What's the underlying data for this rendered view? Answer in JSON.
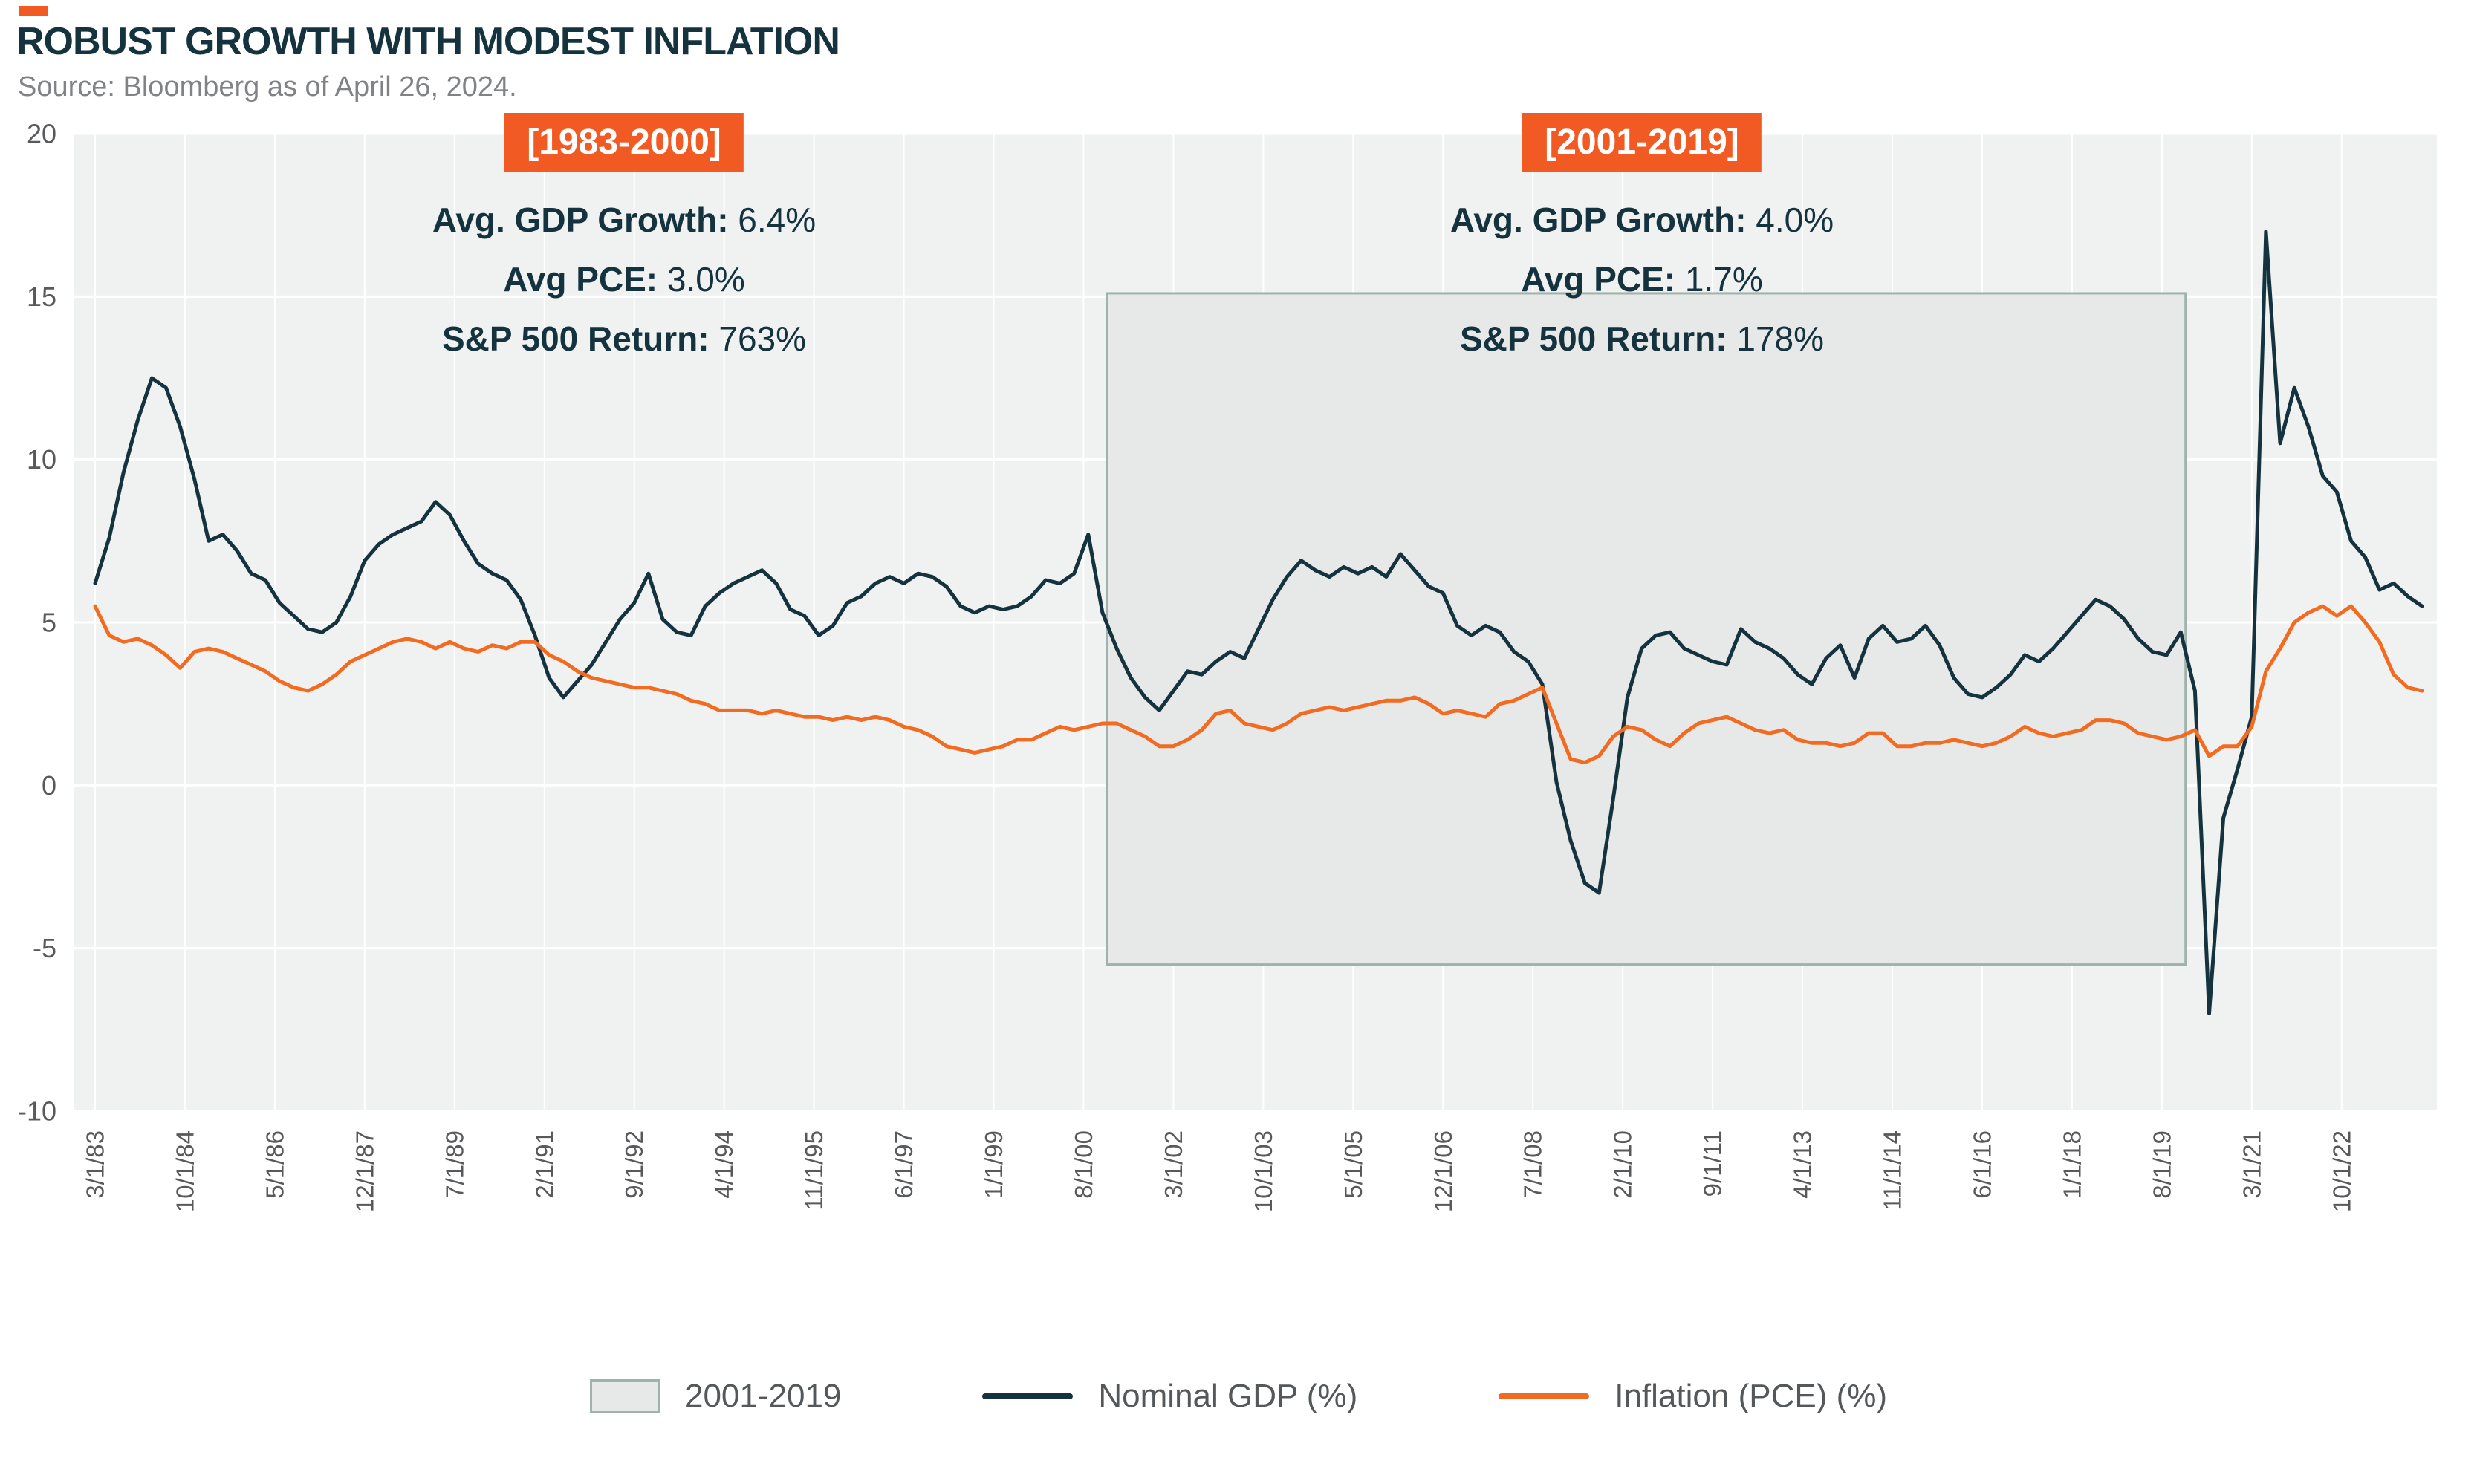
{
  "header": {
    "title": "ROBUST GROWTH WITH MODEST INFLATION",
    "source": "Source: Bloomberg as of April 26, 2024."
  },
  "colors": {
    "accent_orange": "#F15B23",
    "navy": "#15333F",
    "gdp_line": "#15333F",
    "pce_line": "#F26B21",
    "band_fill": "#E7E9E8",
    "band_border": "#9FB2AC",
    "plot_bg": "#EFF2F1",
    "grid": "#FFFFFF",
    "axis_text": "#58595B",
    "legend_text": "#54585A"
  },
  "annotations": [
    {
      "period": "[1983-2000]",
      "lines": [
        {
          "label": "Avg. GDP Growth:",
          "value": " 6.4%"
        },
        {
          "label": "Avg PCE:",
          "value": " 3.0%"
        },
        {
          "label": "S&P 500 Return:",
          "value": " 763%"
        }
      ]
    },
    {
      "period": "[2001-2019]",
      "lines": [
        {
          "label": "Avg. GDP Growth:",
          "value": " 4.0%"
        },
        {
          "label": "Avg PCE:",
          "value": " 1.7%"
        },
        {
          "label": "S&P 500 Return:",
          "value": " 178%"
        }
      ]
    }
  ],
  "legend": {
    "items": [
      {
        "type": "band",
        "label": "2001-2019"
      },
      {
        "type": "line",
        "label": "Nominal GDP (%)"
      },
      {
        "type": "line",
        "label": "Inflation (PCE) (%)"
      }
    ]
  },
  "chart_data": {
    "type": "line",
    "title": "Robust Growth with Modest Inflation",
    "x_start": "1983-03",
    "x_frequency": "quarterly",
    "x_tick_labels": [
      "3/1/83",
      "10/1/84",
      "5/1/86",
      "12/1/87",
      "7/1/89",
      "2/1/91",
      "9/1/92",
      "4/1/94",
      "11/1/95",
      "6/1/97",
      "1/1/99",
      "8/1/00",
      "3/1/02",
      "10/1/03",
      "5/1/05",
      "12/1/06",
      "7/1/08",
      "2/1/10",
      "9/1/11",
      "4/1/13",
      "11/1/14",
      "6/1/16",
      "1/1/18",
      "8/1/19",
      "3/1/21",
      "10/1/22"
    ],
    "ylim": [
      -10,
      20
    ],
    "y_ticks": [
      -10,
      -5,
      0,
      5,
      10,
      15,
      20
    ],
    "grid": true,
    "legend_position": "bottom",
    "highlight_band": {
      "label": "2001-2019",
      "x_from": "2001-01",
      "x_to": "2020-01",
      "y_from": -5.5,
      "y_to": 15.1
    },
    "series": [
      {
        "name": "Nominal GDP (%)",
        "color": "#15333F",
        "values": [
          6.2,
          7.6,
          9.6,
          11.2,
          12.5,
          12.2,
          11.0,
          9.4,
          7.5,
          7.7,
          7.2,
          6.5,
          6.3,
          5.6,
          5.2,
          4.8,
          4.7,
          5.0,
          5.8,
          6.9,
          7.4,
          7.7,
          7.9,
          8.1,
          8.7,
          8.3,
          7.5,
          6.8,
          6.5,
          6.3,
          5.7,
          4.6,
          3.3,
          2.7,
          3.2,
          3.7,
          4.4,
          5.1,
          5.6,
          6.5,
          5.1,
          4.7,
          4.6,
          5.5,
          5.9,
          6.2,
          6.4,
          6.6,
          6.2,
          5.4,
          5.2,
          4.6,
          4.9,
          5.6,
          5.8,
          6.2,
          6.4,
          6.2,
          6.5,
          6.4,
          6.1,
          5.5,
          5.3,
          5.5,
          5.4,
          5.5,
          5.8,
          6.3,
          6.2,
          6.5,
          7.7,
          5.3,
          4.2,
          3.3,
          2.7,
          2.3,
          2.9,
          3.5,
          3.4,
          3.8,
          4.1,
          3.9,
          4.8,
          5.7,
          6.4,
          6.9,
          6.6,
          6.4,
          6.7,
          6.5,
          6.7,
          6.4,
          7.1,
          6.6,
          6.1,
          5.9,
          4.9,
          4.6,
          4.9,
          4.7,
          4.1,
          3.8,
          3.1,
          0.1,
          -1.7,
          -3.0,
          -3.3,
          -0.4,
          2.7,
          4.2,
          4.6,
          4.7,
          4.2,
          4.0,
          3.8,
          3.7,
          4.8,
          4.4,
          4.2,
          3.9,
          3.4,
          3.1,
          3.9,
          4.3,
          3.3,
          4.5,
          4.9,
          4.4,
          4.5,
          4.9,
          4.3,
          3.3,
          2.8,
          2.7,
          3.0,
          3.4,
          4.0,
          3.8,
          4.2,
          4.7,
          5.2,
          5.7,
          5.5,
          5.1,
          4.5,
          4.1,
          4.0,
          4.7,
          2.9,
          -7.0,
          -1.0,
          0.5,
          2.1,
          17.0,
          10.5,
          12.2,
          11.0,
          9.5,
          9.0,
          7.5,
          7.0,
          6.0,
          6.2,
          5.8,
          5.5
        ]
      },
      {
        "name": "Inflation (PCE) (%)",
        "color": "#F26B21",
        "values": [
          5.5,
          4.6,
          4.4,
          4.5,
          4.3,
          4.0,
          3.6,
          4.1,
          4.2,
          4.1,
          3.9,
          3.7,
          3.5,
          3.2,
          3.0,
          2.9,
          3.1,
          3.4,
          3.8,
          4.0,
          4.2,
          4.4,
          4.5,
          4.4,
          4.2,
          4.4,
          4.2,
          4.1,
          4.3,
          4.2,
          4.4,
          4.4,
          4.0,
          3.8,
          3.5,
          3.3,
          3.2,
          3.1,
          3.0,
          3.0,
          2.9,
          2.8,
          2.6,
          2.5,
          2.3,
          2.3,
          2.3,
          2.2,
          2.3,
          2.2,
          2.1,
          2.1,
          2.0,
          2.1,
          2.0,
          2.1,
          2.0,
          1.8,
          1.7,
          1.5,
          1.2,
          1.1,
          1.0,
          1.1,
          1.2,
          1.4,
          1.4,
          1.6,
          1.8,
          1.7,
          1.8,
          1.9,
          1.9,
          1.7,
          1.5,
          1.2,
          1.2,
          1.4,
          1.7,
          2.2,
          2.3,
          1.9,
          1.8,
          1.7,
          1.9,
          2.2,
          2.3,
          2.4,
          2.3,
          2.4,
          2.5,
          2.6,
          2.6,
          2.7,
          2.5,
          2.2,
          2.3,
          2.2,
          2.1,
          2.5,
          2.6,
          2.8,
          3.0,
          1.9,
          0.8,
          0.7,
          0.9,
          1.5,
          1.8,
          1.7,
          1.4,
          1.2,
          1.6,
          1.9,
          2.0,
          2.1,
          1.9,
          1.7,
          1.6,
          1.7,
          1.4,
          1.3,
          1.3,
          1.2,
          1.3,
          1.6,
          1.6,
          1.2,
          1.2,
          1.3,
          1.3,
          1.4,
          1.3,
          1.2,
          1.3,
          1.5,
          1.8,
          1.6,
          1.5,
          1.6,
          1.7,
          2.0,
          2.0,
          1.9,
          1.6,
          1.5,
          1.4,
          1.5,
          1.7,
          0.9,
          1.2,
          1.2,
          1.8,
          3.5,
          4.2,
          5.0,
          5.3,
          5.5,
          5.2,
          5.5,
          5.0,
          4.4,
          3.4,
          3.0,
          2.9
        ]
      }
    ]
  }
}
